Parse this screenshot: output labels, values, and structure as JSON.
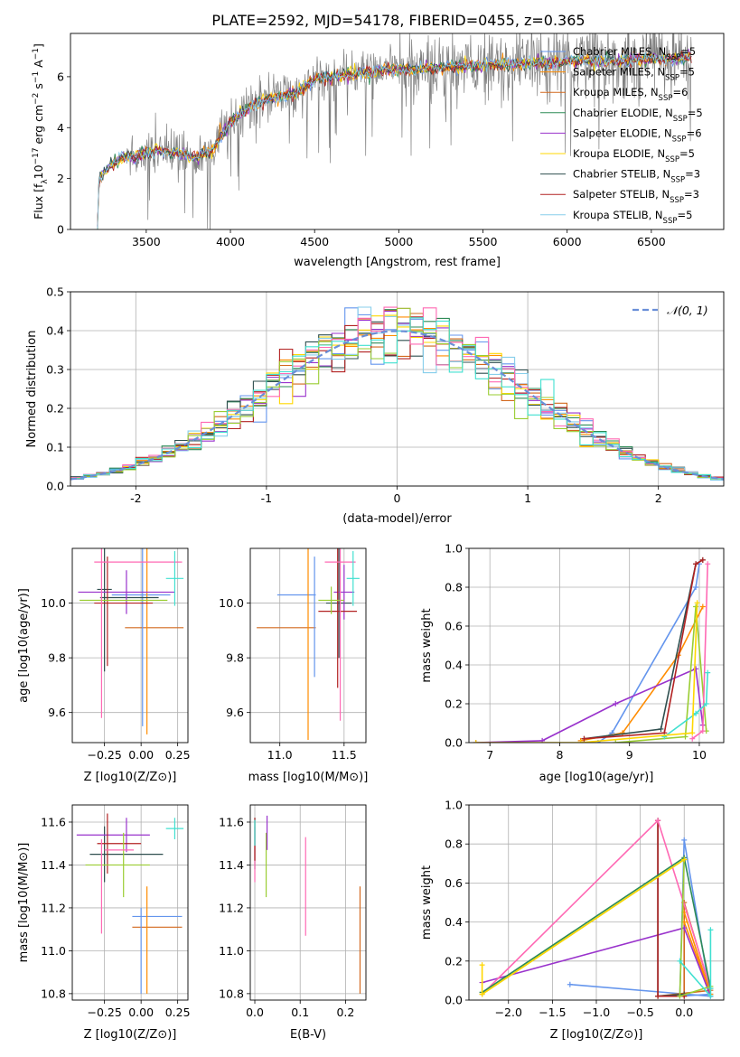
{
  "figure": {
    "title": "PLATE=2592, MJD=54178, FIBERID=0455, z=0.365"
  },
  "colors": {
    "observed": "#808080",
    "series": [
      "#6495ed",
      "#ff8c00",
      "#d2691e",
      "#2e8b57",
      "#9932cc",
      "#ffd700",
      "#2f4f4f",
      "#b22222",
      "#87ceeb",
      "#9acd32",
      "#ff69b4",
      "#40e0d0"
    ]
  },
  "chart_data": [
    {
      "id": "spectrum",
      "type": "line",
      "title": "PLATE=2592, MJD=54178, FIBERID=0455, z=0.365",
      "xlabel": "wavelength [Angstrom, rest frame]",
      "ylabel": "Flux [f_λ 10^-17 erg cm^-2 s^-1 A^-1]",
      "xlim": [
        3050,
        6930
      ],
      "ylim": [
        0,
        7.7
      ],
      "xticks": [
        3500,
        4000,
        4500,
        5000,
        5500,
        6000,
        6500
      ],
      "yticks": [
        0,
        2,
        4,
        6
      ],
      "grid": false,
      "legend_position": "top-right",
      "continuum_knots": {
        "x": [
          3210,
          3220,
          3300,
          3350,
          3400,
          3450,
          3550,
          3700,
          3800,
          3900,
          4000,
          4100,
          4200,
          4300,
          4400,
          4500,
          4600,
          4700,
          4800,
          4900,
          5000,
          5100,
          5200,
          5300,
          5400,
          5500,
          5600,
          5700,
          5800,
          5900,
          6000,
          6100,
          6200,
          6300,
          6400,
          6500,
          6600,
          6700,
          6740
        ],
        "y": [
          0,
          2.0,
          2.6,
          2.8,
          2.85,
          2.9,
          3.1,
          3.0,
          2.8,
          3.2,
          4.2,
          4.8,
          5.1,
          5.2,
          5.4,
          5.9,
          6.0,
          6.1,
          6.2,
          6.25,
          6.3,
          6.3,
          6.35,
          6.4,
          6.4,
          6.45,
          6.5,
          6.5,
          6.55,
          6.55,
          6.6,
          6.65,
          6.6,
          6.6,
          6.65,
          6.7,
          6.7,
          6.75,
          6.75
        ]
      },
      "series": [
        {
          "name": "Chabrier MILES, N_SSP=5",
          "label_main": "Chabrier MILES, N",
          "label_sub": "SSP",
          "label_tail": "=5",
          "color": "#6495ed"
        },
        {
          "name": "Salpeter MILES, N_SSP=5",
          "label_main": "Salpeter MILES, N",
          "label_sub": "SSP",
          "label_tail": "=5",
          "color": "#ff8c00"
        },
        {
          "name": "Kroupa MILES, N_SSP=6",
          "label_main": "Kroupa MILES, N",
          "label_sub": "SSP",
          "label_tail": "=6",
          "color": "#d2691e"
        },
        {
          "name": "Chabrier ELODIE, N_SSP=5",
          "label_main": "Chabrier ELODIE, N",
          "label_sub": "SSP",
          "label_tail": "=5",
          "color": "#2e8b57"
        },
        {
          "name": "Salpeter ELODIE, N_SSP=6",
          "label_main": "Salpeter ELODIE, N",
          "label_sub": "SSP",
          "label_tail": "=6",
          "color": "#9932cc"
        },
        {
          "name": "Kroupa ELODIE, N_SSP=5",
          "label_main": "Kroupa ELODIE, N",
          "label_sub": "SSP",
          "label_tail": "=5",
          "color": "#ffd700"
        },
        {
          "name": "Chabrier STELIB, N_SSP=3",
          "label_main": "Chabrier STELIB, N",
          "label_sub": "SSP",
          "label_tail": "=3",
          "color": "#2f4f4f"
        },
        {
          "name": "Salpeter STELIB, N_SSP=3",
          "label_main": "Salpeter STELIB, N",
          "label_sub": "SSP",
          "label_tail": "=3",
          "color": "#b22222"
        },
        {
          "name": "Kroupa STELIB, N_SSP=5",
          "label_main": "Kroupa STELIB, N",
          "label_sub": "SSP",
          "label_tail": "=5",
          "color": "#87ceeb"
        }
      ]
    },
    {
      "id": "residuals",
      "type": "step-histogram",
      "xlabel": "(data-model)/error",
      "ylabel": "Normed distribution",
      "xlim": [
        -2.5,
        2.5
      ],
      "ylim": [
        0,
        0.5
      ],
      "xticks": [
        -2,
        -1,
        0,
        1,
        2
      ],
      "yticks": [
        0.0,
        0.1,
        0.2,
        0.3,
        0.4,
        0.5
      ],
      "grid": true,
      "legend_position": "top-right",
      "reference": {
        "name": "N(0,1)",
        "label": "𝒩(0, 1)",
        "mean": 0,
        "sigma": 1,
        "color": "#6a8fd8"
      },
      "bin_width": 0.1,
      "bin_range": [
        -2.5,
        2.5
      ]
    },
    {
      "id": "age_vs_Z",
      "type": "errorbar",
      "xlabel": "Z [log10(Z/Z⊙)]",
      "ylabel": "age [log10(age/yr)]",
      "xlim": [
        -0.47,
        0.32
      ],
      "ylim": [
        9.49,
        10.2
      ],
      "xticks": [
        -0.25,
        0.0,
        0.25
      ],
      "xticklabels": [
        "−0.25",
        "0.00",
        "0.25"
      ],
      "yticks": [
        9.6,
        9.8,
        10.0
      ],
      "grid": true,
      "points": [
        {
          "x": 0.0,
          "y": 10.03,
          "xerr": 0.2,
          "yerr": 0.0,
          "color": "#6495ed"
        },
        {
          "x": 0.09,
          "y": 9.91,
          "xerr": 0.2,
          "yerr": 0.0,
          "color": "#d2691e"
        },
        {
          "x": 0.04,
          "y": 10.02,
          "xerr": 0.0,
          "yerr": 0.5,
          "color": "#ff8c00"
        },
        {
          "x": 0.01,
          "y": 10.01,
          "xerr": 0.0,
          "yerr": 0.46,
          "color": "#6495ed"
        },
        {
          "x": -0.25,
          "y": 10.05,
          "xerr": 0.05,
          "yerr": 0.3,
          "color": "#2f4f4f"
        },
        {
          "x": -0.08,
          "y": 10.02,
          "xerr": 0.2,
          "yerr": 0.0,
          "color": "#2f4f4f"
        },
        {
          "x": -0.1,
          "y": 10.04,
          "xerr": 0.33,
          "yerr": 0.08,
          "color": "#9932cc"
        },
        {
          "x": -0.12,
          "y": 10.0,
          "xerr": 0.2,
          "yerr": 0.0,
          "color": "#b22222"
        },
        {
          "x": -0.23,
          "y": 9.97,
          "xerr": 0.0,
          "yerr": 0.2,
          "color": "#b22222"
        },
        {
          "x": -0.12,
          "y": 10.01,
          "xerr": 0.3,
          "yerr": 0.0,
          "color": "#9acd32"
        },
        {
          "x": -0.27,
          "y": 10.0,
          "xerr": 0.0,
          "yerr": 0.42,
          "color": "#ff69b4"
        },
        {
          "x": -0.02,
          "y": 10.15,
          "xerr": 0.3,
          "yerr": 0.0,
          "color": "#ff69b4"
        },
        {
          "x": 0.23,
          "y": 10.09,
          "xerr": 0.06,
          "yerr": 0.1,
          "color": "#40e0d0"
        }
      ]
    },
    {
      "id": "age_vs_mass",
      "type": "errorbar",
      "xlabel": "mass [log10(M/M⊙)]",
      "ylabel": "",
      "xlim": [
        10.77,
        11.67
      ],
      "ylim": [
        9.49,
        10.2
      ],
      "xticks": [
        11.0,
        11.5
      ],
      "yticks": [
        9.6,
        9.8,
        10.0
      ],
      "grid": true,
      "points": [
        {
          "x": 11.05,
          "y": 9.91,
          "xerr": 0.23,
          "yerr": 0.0,
          "color": "#d2691e"
        },
        {
          "x": 11.13,
          "y": 10.03,
          "xerr": 0.15,
          "yerr": 0.0,
          "color": "#6495ed"
        },
        {
          "x": 11.22,
          "y": 9.9,
          "xerr": 0.0,
          "yerr": 0.4,
          "color": "#ff8c00"
        },
        {
          "x": 11.27,
          "y": 9.95,
          "xerr": 0.0,
          "yerr": 0.22,
          "color": "#6495ed"
        },
        {
          "x": 11.46,
          "y": 10.0,
          "xerr": 0.1,
          "yerr": 0.2,
          "color": "#2f4f4f"
        },
        {
          "x": 11.5,
          "y": 10.04,
          "xerr": 0.08,
          "yerr": 0.1,
          "color": "#9932cc"
        },
        {
          "x": 11.45,
          "y": 9.97,
          "xerr": 0.15,
          "yerr": 0.28,
          "color": "#b22222"
        },
        {
          "x": 11.4,
          "y": 10.01,
          "xerr": 0.1,
          "yerr": 0.05,
          "color": "#9acd32"
        },
        {
          "x": 11.47,
          "y": 10.15,
          "xerr": 0.12,
          "yerr": 0.58,
          "color": "#ff69b4"
        },
        {
          "x": 11.57,
          "y": 10.09,
          "xerr": 0.05,
          "yerr": 0.1,
          "color": "#40e0d0"
        }
      ]
    },
    {
      "id": "weight_vs_age",
      "type": "line",
      "xlabel": "age [log10(age/yr)]",
      "ylabel": "mass weight",
      "xlim": [
        6.7,
        10.35
      ],
      "ylim": [
        0,
        1.0
      ],
      "xticks": [
        7,
        8,
        9,
        10
      ],
      "yticks": [
        0.0,
        0.2,
        0.4,
        0.6,
        0.8,
        1.0
      ],
      "grid": true,
      "series": [
        {
          "color": "#6495ed",
          "x": [
            8.55,
            8.75,
            9.95,
            10.0
          ],
          "y": [
            0.0,
            0.05,
            0.8,
            0.92
          ]
        },
        {
          "color": "#ff8c00",
          "x": [
            8.3,
            8.9,
            9.7,
            10.05
          ],
          "y": [
            0.01,
            0.05,
            0.45,
            0.7
          ]
        },
        {
          "color": "#9932cc",
          "x": [
            6.8,
            7.75,
            8.8,
            9.95,
            10.05
          ],
          "y": [
            0.0,
            0.01,
            0.2,
            0.38,
            0.09
          ]
        },
        {
          "color": "#2f4f4f",
          "x": [
            8.35,
            9.45,
            9.95,
            10.05
          ],
          "y": [
            0.02,
            0.07,
            0.92,
            0.94
          ]
        },
        {
          "color": "#b22222",
          "x": [
            8.35,
            9.5,
            9.95,
            10.05
          ],
          "y": [
            0.02,
            0.05,
            0.92,
            0.94
          ]
        },
        {
          "color": "#9acd32",
          "x": [
            8.8,
            9.8,
            9.95,
            10.1
          ],
          "y": [
            0.0,
            0.03,
            0.7,
            0.06
          ]
        },
        {
          "color": "#ff69b4",
          "x": [
            9.9,
            10.05,
            10.12
          ],
          "y": [
            0.02,
            0.06,
            0.92
          ]
        },
        {
          "color": "#40e0d0",
          "x": [
            9.5,
            9.95,
            10.1,
            10.12
          ],
          "y": [
            0.03,
            0.15,
            0.2,
            0.36
          ]
        },
        {
          "color": "#ffd700",
          "x": [
            6.8,
            8.3,
            9.9,
            9.97
          ],
          "y": [
            0.0,
            0.0,
            0.05,
            0.72
          ]
        }
      ]
    },
    {
      "id": "mass_vs_Z",
      "type": "errorbar",
      "xlabel": "Z [log10(Z/Z⊙)]",
      "ylabel": "mass [log10(M/M⊙)]",
      "xlim": [
        -0.47,
        0.32
      ],
      "ylim": [
        10.77,
        11.68
      ],
      "xticks": [
        -0.25,
        0.0,
        0.25
      ],
      "xticklabels": [
        "−0.25",
        "0.00",
        "0.25"
      ],
      "yticks": [
        10.8,
        11.0,
        11.2,
        11.4,
        11.6
      ],
      "grid": true,
      "points": [
        {
          "x": 0.11,
          "y": 11.16,
          "xerr": 0.17,
          "yerr": 0.0,
          "color": "#6495ed"
        },
        {
          "x": 0.11,
          "y": 11.11,
          "xerr": 0.17,
          "yerr": 0.0,
          "color": "#d2691e"
        },
        {
          "x": 0.0,
          "y": 11.0,
          "xerr": 0.0,
          "yerr": 0.2,
          "color": "#6495ed"
        },
        {
          "x": 0.04,
          "y": 11.05,
          "xerr": 0.0,
          "yerr": 0.25,
          "color": "#ff8c00"
        },
        {
          "x": -0.1,
          "y": 11.45,
          "xerr": 0.25,
          "yerr": 0.0,
          "color": "#2f4f4f"
        },
        {
          "x": -0.25,
          "y": 11.45,
          "xerr": 0.0,
          "yerr": 0.13,
          "color": "#2f4f4f"
        },
        {
          "x": -0.19,
          "y": 11.54,
          "xerr": 0.25,
          "yerr": 0.0,
          "color": "#9932cc"
        },
        {
          "x": -0.1,
          "y": 11.54,
          "xerr": 0.0,
          "yerr": 0.08,
          "color": "#9932cc"
        },
        {
          "x": -0.15,
          "y": 11.5,
          "xerr": 0.15,
          "yerr": 0.0,
          "color": "#b22222"
        },
        {
          "x": -0.23,
          "y": 11.5,
          "xerr": 0.0,
          "yerr": 0.14,
          "color": "#b22222"
        },
        {
          "x": -0.16,
          "y": 11.4,
          "xerr": 0.22,
          "yerr": 0.0,
          "color": "#9acd32"
        },
        {
          "x": -0.12,
          "y": 11.4,
          "xerr": 0.0,
          "yerr": 0.15,
          "color": "#9acd32"
        },
        {
          "x": -0.15,
          "y": 11.47,
          "xerr": 0.1,
          "yerr": 0.0,
          "color": "#ff69b4"
        },
        {
          "x": -0.27,
          "y": 11.3,
          "xerr": 0.0,
          "yerr": 0.22,
          "color": "#ff69b4"
        },
        {
          "x": 0.23,
          "y": 11.57,
          "xerr": 0.06,
          "yerr": 0.05,
          "color": "#40e0d0"
        }
      ]
    },
    {
      "id": "mass_vs_EBV",
      "type": "errorbar",
      "xlabel": "E(B-V)",
      "ylabel": "",
      "xlim": [
        -0.01,
        0.245
      ],
      "ylim": [
        10.77,
        11.68
      ],
      "xticks": [
        0.0,
        0.1,
        0.2
      ],
      "yticks": [
        10.8,
        11.0,
        11.2,
        11.4,
        11.6
      ],
      "grid": true,
      "points": [
        {
          "x": 0.0,
          "y": 11.5,
          "xerr": 0.0,
          "yerr": 0.12,
          "color": "#2f4f4f"
        },
        {
          "x": 0.0,
          "y": 11.45,
          "xerr": 0.0,
          "yerr": 0.13,
          "color": "#ff69b4"
        },
        {
          "x": 0.0,
          "y": 11.52,
          "xerr": 0.0,
          "yerr": 0.1,
          "color": "#b22222"
        },
        {
          "x": 0.0,
          "y": 11.55,
          "xerr": 0.0,
          "yerr": 0.06,
          "color": "#40e0d0"
        },
        {
          "x": 0.025,
          "y": 11.4,
          "xerr": 0.0,
          "yerr": 0.15,
          "color": "#9acd32"
        },
        {
          "x": 0.027,
          "y": 11.55,
          "xerr": 0.0,
          "yerr": 0.08,
          "color": "#9932cc"
        },
        {
          "x": 0.112,
          "y": 11.3,
          "xerr": 0.0,
          "yerr": 0.23,
          "color": "#ff69b4"
        },
        {
          "x": 0.232,
          "y": 11.05,
          "xerr": 0.0,
          "yerr": 0.25,
          "color": "#d2691e"
        }
      ]
    },
    {
      "id": "weight_vs_Z",
      "type": "line",
      "xlabel": "Z [log10(Z/Z⊙)]",
      "ylabel": "mass weight",
      "xlim": [
        -2.45,
        0.45
      ],
      "ylim": [
        0,
        1.0
      ],
      "xticks": [
        -2.0,
        -1.5,
        -1.0,
        -0.5,
        0.0
      ],
      "xticklabels": [
        "−2.0",
        "−1.5",
        "−1.0",
        "−0.5",
        "0.0"
      ],
      "yticks": [
        0.0,
        0.2,
        0.4,
        0.6,
        0.8,
        1.0
      ],
      "grid": true,
      "series": [
        {
          "color": "#6495ed",
          "x": [
            -1.3,
            0.3,
            0.0,
            -0.05,
            0.3
          ],
          "y": [
            0.08,
            0.02,
            0.82,
            0.02,
            0.03
          ]
        },
        {
          "color": "#d2691e",
          "x": [
            -0.3,
            0.3,
            0.0,
            0.0
          ],
          "y": [
            0.02,
            0.05,
            0.5,
            0.02
          ]
        },
        {
          "color": "#ff8c00",
          "x": [
            0.0,
            0.3,
            0.0
          ],
          "y": [
            0.4,
            0.03,
            0.45
          ]
        },
        {
          "color": "#9932cc",
          "x": [
            -2.3,
            0.0,
            0.3
          ],
          "y": [
            0.09,
            0.37,
            0.02
          ]
        },
        {
          "color": "#2f4f4f",
          "x": [
            -0.3,
            -0.3,
            0.0
          ],
          "y": [
            0.92,
            0.02,
            0.03
          ]
        },
        {
          "color": "#b22222",
          "x": [
            -0.3,
            -0.3,
            0.0
          ],
          "y": [
            0.92,
            0.02,
            0.02
          ]
        },
        {
          "color": "#ff69b4",
          "x": [
            -2.3,
            -0.3,
            0.3
          ],
          "y": [
            0.03,
            0.92,
            0.06
          ]
        },
        {
          "color": "#9acd32",
          "x": [
            -2.3,
            0.0,
            -0.05,
            0.3
          ],
          "y": [
            0.03,
            0.72,
            0.02,
            0.07
          ]
        },
        {
          "color": "#2e8b57",
          "x": [
            -2.3,
            0.0,
            0.3
          ],
          "y": [
            0.04,
            0.73,
            0.06
          ]
        },
        {
          "color": "#40e0d0",
          "x": [
            -0.05,
            0.3,
            0.3,
            0.3
          ],
          "y": [
            0.2,
            0.02,
            0.36,
            0.06
          ]
        },
        {
          "color": "#ffd700",
          "x": [
            -2.3,
            -2.3,
            0.0
          ],
          "y": [
            0.18,
            0.03,
            0.72
          ]
        }
      ]
    }
  ]
}
